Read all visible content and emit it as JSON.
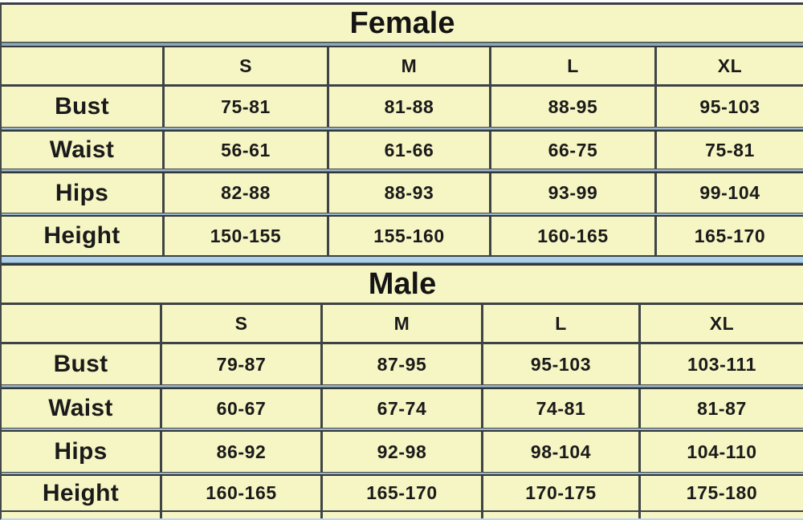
{
  "colors": {
    "table_background": "#f6f5c4",
    "text": "#1a1a1a",
    "dark_border": "#3d4245",
    "blue_gray_band": "#8fa9bc",
    "light_blue_band": "#abd0ea",
    "bottom_edge": "#b9d8ee"
  },
  "chart_data": [
    {
      "type": "table",
      "title": "Female",
      "columns": [
        "",
        "S",
        "M",
        "L",
        "XL"
      ],
      "rows": [
        [
          "Bust",
          "75-81",
          "81-88",
          "88-95",
          "95-103"
        ],
        [
          "Waist",
          "56-61",
          "61-66",
          "66-75",
          "75-81"
        ],
        [
          "Hips",
          "82-88",
          "88-93",
          "93-99",
          "99-104"
        ],
        [
          "Height",
          "150-155",
          "155-160",
          "160-165",
          "165-170"
        ]
      ]
    },
    {
      "type": "table",
      "title": "Male",
      "columns": [
        "",
        "S",
        "M",
        "L",
        "XL"
      ],
      "rows": [
        [
          "Bust",
          "79-87",
          "87-95",
          "95-103",
          "103-111"
        ],
        [
          "Waist",
          "60-67",
          "67-74",
          "74-81",
          "81-87"
        ],
        [
          "Hips",
          "86-92",
          "92-98",
          "98-104",
          "104-110"
        ],
        [
          "Height",
          "160-165",
          "165-170",
          "170-175",
          "175-180"
        ]
      ]
    }
  ],
  "tables": [
    {
      "title": "Female",
      "columns": [
        "S",
        "M",
        "L",
        "XL"
      ],
      "rows": [
        {
          "label": "Bust",
          "values": [
            "75-81",
            "81-88",
            "88-95",
            "95-103"
          ]
        },
        {
          "label": "Waist",
          "values": [
            "56-61",
            "61-66",
            "66-75",
            "75-81"
          ]
        },
        {
          "label": "Hips",
          "values": [
            "82-88",
            "88-93",
            "93-99",
            "99-104"
          ]
        },
        {
          "label": "Height",
          "values": [
            "150-155",
            "155-160",
            "160-165",
            "165-170"
          ]
        }
      ]
    },
    {
      "title": "Male",
      "columns": [
        "S",
        "M",
        "L",
        "XL"
      ],
      "rows": [
        {
          "label": "Bust",
          "values": [
            "79-87",
            "87-95",
            "95-103",
            "103-111"
          ]
        },
        {
          "label": "Waist",
          "values": [
            "60-67",
            "67-74",
            "74-81",
            "81-87"
          ]
        },
        {
          "label": "Hips",
          "values": [
            "86-92",
            "92-98",
            "98-104",
            "104-110"
          ]
        },
        {
          "label": "Height",
          "values": [
            "160-165",
            "165-170",
            "170-175",
            "175-180"
          ]
        }
      ]
    }
  ]
}
